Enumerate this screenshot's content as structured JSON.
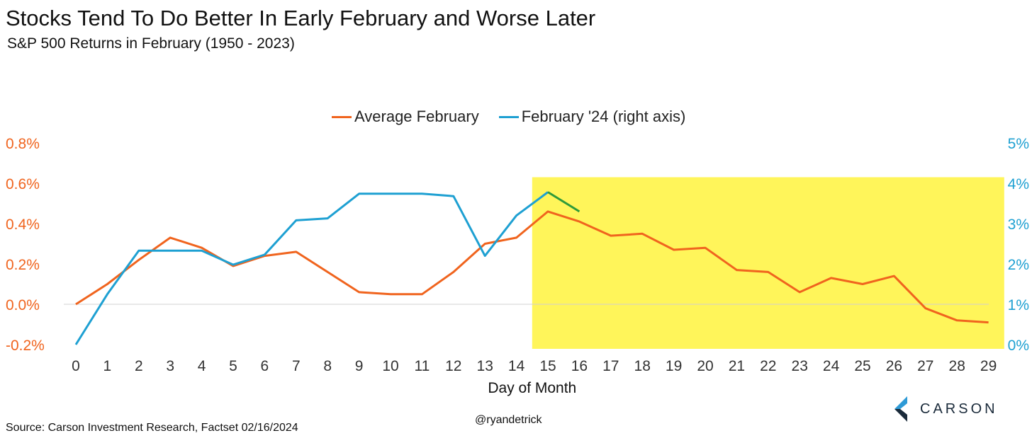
{
  "header": {
    "title": "Stocks Tend To Do Better In Early February and Worse Later",
    "subtitle": "S&P 500 Returns in February (1950 - 2023)"
  },
  "footer": {
    "source": "Source: Carson Investment Research, Factset 02/16/2024",
    "handle": "@ryandetrick",
    "logo_text": "CARSON"
  },
  "colors": {
    "average": "#f0641e",
    "feb24": "#1ea0d2",
    "feb24_latest": "#2e9a3a",
    "highlight": "#fff55a",
    "zero_line": "#d0d0d0",
    "logo_navy": "#1a2a3a",
    "logo_blue": "#2e9ad6"
  },
  "chart_data": {
    "type": "line",
    "xlabel": "Day of Month",
    "x": [
      0,
      1,
      2,
      3,
      4,
      5,
      6,
      7,
      8,
      9,
      10,
      11,
      12,
      13,
      14,
      15,
      16,
      17,
      18,
      19,
      20,
      21,
      22,
      23,
      24,
      25,
      26,
      27,
      28,
      29
    ],
    "left_axis": {
      "ylim": [
        -0.2,
        0.8
      ],
      "ticks": [
        "-0.2%",
        "0.0%",
        "0.2%",
        "0.4%",
        "0.6%",
        "0.8%"
      ],
      "tick_values": [
        -0.2,
        0.0,
        0.2,
        0.4,
        0.6,
        0.8
      ]
    },
    "right_axis": {
      "ylim": [
        0,
        5
      ],
      "ticks": [
        "0%",
        "1%",
        "2%",
        "3%",
        "4%",
        "5%"
      ],
      "tick_values": [
        0,
        1,
        2,
        3,
        4,
        5
      ]
    },
    "highlight": {
      "x_from": 15,
      "x_to": 29,
      "y_top_left": 0.63
    },
    "series": [
      {
        "name": "Average February",
        "axis": "left",
        "values": [
          0.0,
          0.1,
          0.22,
          0.33,
          0.28,
          0.19,
          0.24,
          0.26,
          0.16,
          0.06,
          0.05,
          0.05,
          0.16,
          0.3,
          0.33,
          0.46,
          0.41,
          0.34,
          0.35,
          0.27,
          0.28,
          0.17,
          0.16,
          0.06,
          0.13,
          0.1,
          0.14,
          -0.02,
          -0.08,
          -0.09
        ]
      },
      {
        "name": "February '24 (right axis)",
        "axis": "right",
        "values": [
          0.0,
          1.25,
          2.33,
          2.33,
          2.33,
          1.98,
          2.23,
          3.08,
          3.13,
          3.74,
          3.74,
          3.74,
          3.68,
          2.2,
          3.2,
          3.78,
          null,
          null,
          null,
          null,
          null,
          null,
          null,
          null,
          null,
          null,
          null,
          null,
          null,
          null
        ],
        "latest_segment": {
          "x": [
            15,
            16
          ],
          "values": [
            3.78,
            3.3
          ]
        }
      }
    ]
  }
}
